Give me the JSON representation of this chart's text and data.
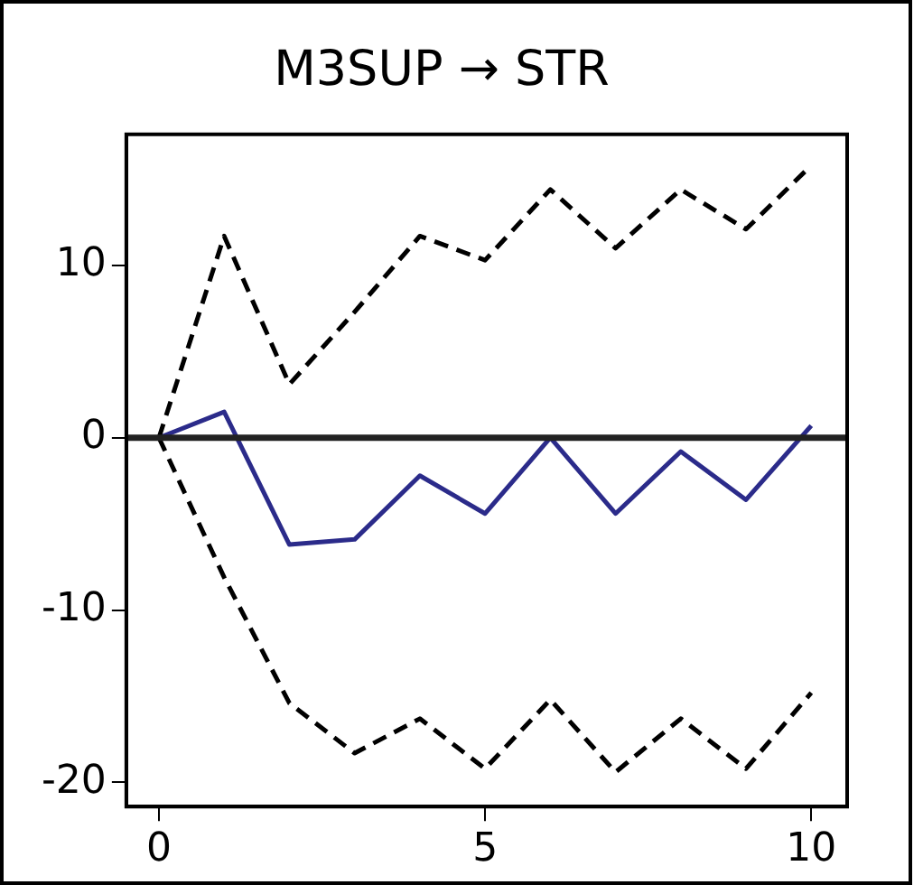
{
  "chart_data": {
    "type": "line",
    "title": "M3SUP → STR",
    "x": [
      0,
      1,
      2,
      3,
      4,
      5,
      6,
      7,
      8,
      9,
      10
    ],
    "series": [
      {
        "color": "#000000",
        "line_style": "dashed",
        "values": [
          0,
          11.7,
          3.1,
          7.3,
          11.7,
          10.3,
          14.4,
          11.0,
          14.4,
          12.1,
          15.8
        ]
      },
      {
        "color": "#2b2b8a",
        "line_style": "solid",
        "values": [
          0,
          1.5,
          -6.2,
          -5.9,
          -2.2,
          -4.4,
          0,
          -4.4,
          -0.8,
          -3.6,
          0.7
        ]
      },
      {
        "color": "#000000",
        "line_style": "dashed",
        "values": [
          0,
          -8.1,
          -15.4,
          -18.3,
          -16.3,
          -19.2,
          -15.2,
          -19.4,
          -16.3,
          -19.2,
          -14.8
        ]
      }
    ],
    "xlim": [
      -0.5,
      10.55
    ],
    "xticks": [
      0,
      5,
      10
    ],
    "ylim": [
      -21.4,
      17.6
    ],
    "yticks": [
      -20,
      -10,
      0,
      10
    ],
    "ref_lines": [
      {
        "axis": "y",
        "value": 0,
        "color": "#222222"
      }
    ],
    "grid": false,
    "legend": false,
    "marker": "none"
  }
}
